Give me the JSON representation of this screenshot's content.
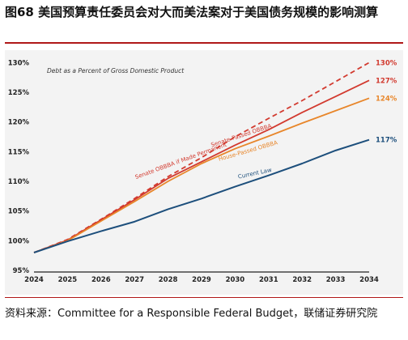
{
  "figure": {
    "title": "图68 美国预算责任委员会对大而美法案对于美国债务规模的影响测算",
    "source": "资料来源：Committee for a Responsible Federal Budget，联储证券研究院"
  },
  "chart_data": {
    "type": "line",
    "title": "Debt as a Percent of Gross Domestic Product",
    "xlabel": "",
    "ylabel": "",
    "x": [
      2024,
      2025,
      2026,
      2027,
      2028,
      2029,
      2030,
      2031,
      2032,
      2033,
      2034
    ],
    "y_ticks": [
      "95%",
      "100%",
      "105%",
      "110%",
      "115%",
      "120%",
      "125%",
      "130%"
    ],
    "ylim": [
      95,
      131
    ],
    "grid": false,
    "series": [
      {
        "name": "Senate OBBBA if Made Permanent",
        "color": "#d23a2f",
        "dashed": true,
        "values": [
          98,
          100.2,
          103.6,
          107.1,
          110.8,
          114.0,
          117.5,
          120.6,
          123.6,
          126.8,
          130.0
        ],
        "end_label": "130%"
      },
      {
        "name": "Senate-Passed OBBBA",
        "color": "#d23a2f",
        "dashed": false,
        "values": [
          98,
          100.1,
          103.5,
          106.9,
          110.5,
          113.3,
          116.1,
          118.7,
          121.6,
          124.3,
          127.0
        ],
        "end_label": "127%"
      },
      {
        "name": "House-Passed OBBBA",
        "color": "#e8862a",
        "dashed": false,
        "values": [
          98,
          100.0,
          103.3,
          106.6,
          110.0,
          113.0,
          115.5,
          117.6,
          119.8,
          121.9,
          124.0
        ],
        "end_label": "124%"
      },
      {
        "name": "Current Law",
        "color": "#1d4f7c",
        "dashed": false,
        "values": [
          98,
          99.9,
          101.6,
          103.2,
          105.3,
          107.1,
          109.1,
          111.0,
          113.0,
          115.2,
          117.0
        ],
        "end_label": "117%"
      }
    ]
  }
}
